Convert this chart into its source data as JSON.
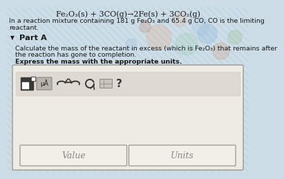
{
  "title_line": "Fe₂O₃(s) + 3CO(g)→2Fe(s) + 3CO₂(g)",
  "body_line1": "In a reaction mixture containing 181 g Fe₂O₃ and 65.4 g CO, CO is the limiting",
  "body_line2": "reactant.",
  "part_label": "Part A",
  "calc_line1": "Calculate the mass of the reactant in excess (which is Fe₂O₃) that remains after",
  "calc_line2": "the reaction has gone to completion.",
  "express_line": "Express the mass with the appropriate units.",
  "value_label": "Value",
  "units_label": "Units",
  "bg_color": "#cddde8",
  "stripe_color1": "#b8cdd8",
  "stripe_color2": "#d8e8f0",
  "box_bg": "#eeeae4",
  "toolbar_bg": "#d0ccc4",
  "input_bg": "#f2efe8",
  "border_color": "#999990",
  "text_color": "#1a1a18",
  "icon_dark": "#3a3835"
}
